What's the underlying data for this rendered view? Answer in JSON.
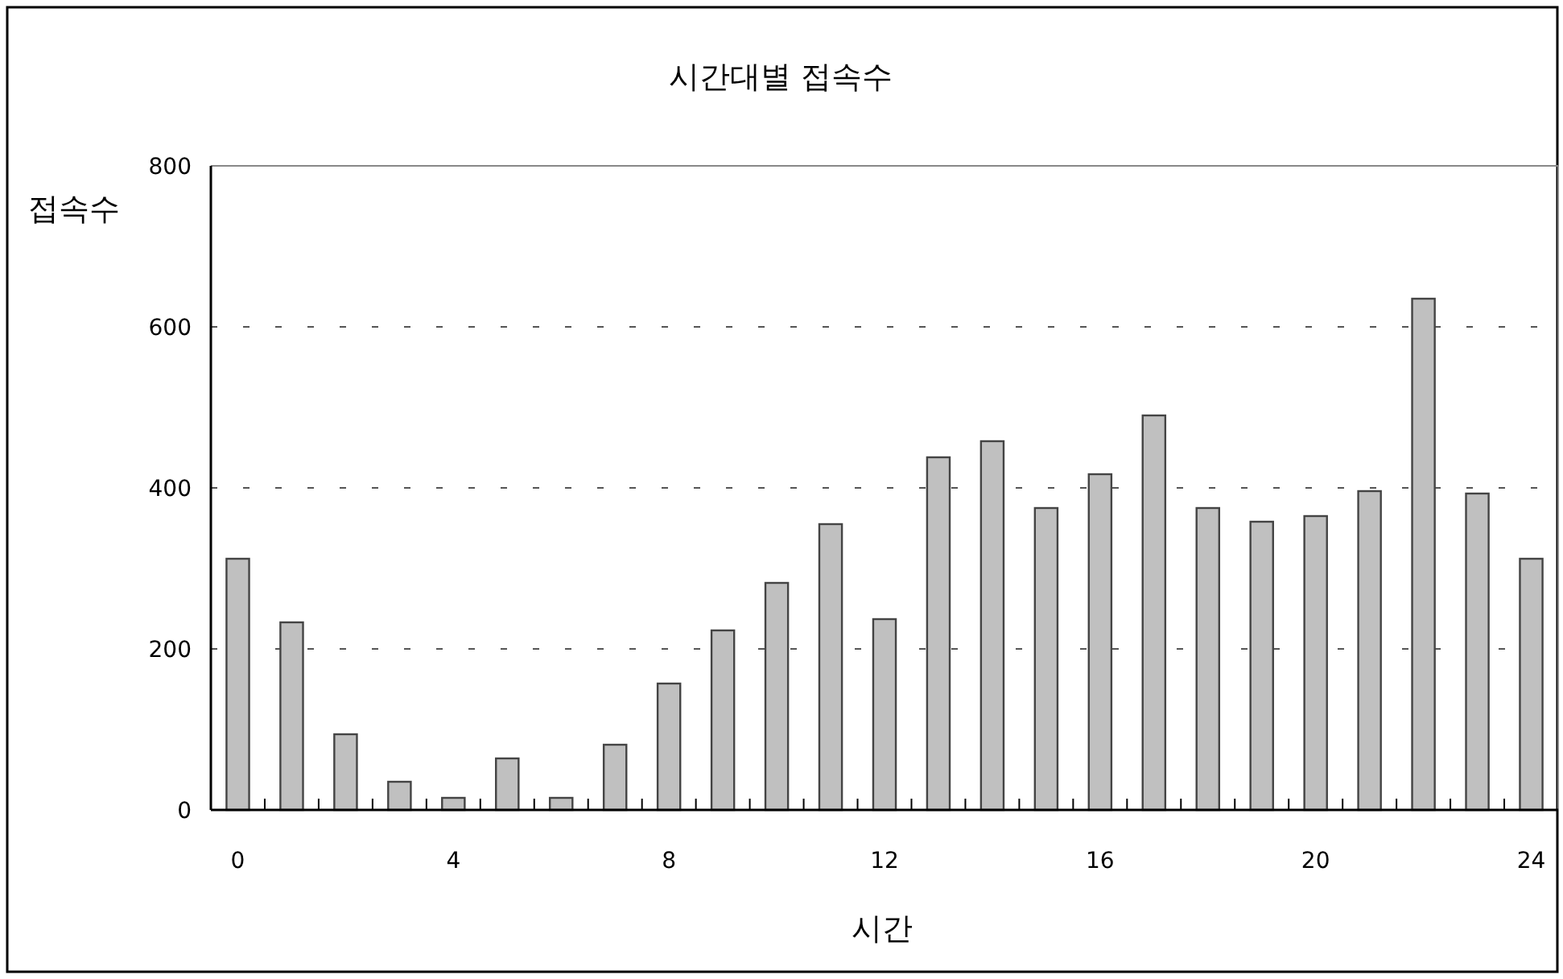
{
  "chart_data": {
    "type": "bar",
    "title": "시간대별 접속수",
    "xlabel": "시간",
    "ylabel": "접속수",
    "x": [
      0,
      1,
      2,
      3,
      4,
      5,
      6,
      7,
      8,
      9,
      10,
      11,
      12,
      13,
      14,
      15,
      16,
      17,
      18,
      19,
      20,
      21,
      22,
      23,
      24
    ],
    "values": [
      312,
      233,
      94,
      35,
      15,
      64,
      15,
      81,
      157,
      223,
      282,
      355,
      237,
      438,
      458,
      375,
      417,
      490,
      375,
      358,
      365,
      396,
      635,
      393,
      312
    ],
    "color": "#c0c0c0",
    "xlim": [
      -0.5,
      24.5
    ],
    "xticks": [
      0,
      4,
      8,
      12,
      16,
      20,
      24
    ],
    "ylim": [
      0,
      800
    ],
    "yticks": [
      0,
      200,
      400,
      600,
      800
    ],
    "grid": "y"
  }
}
